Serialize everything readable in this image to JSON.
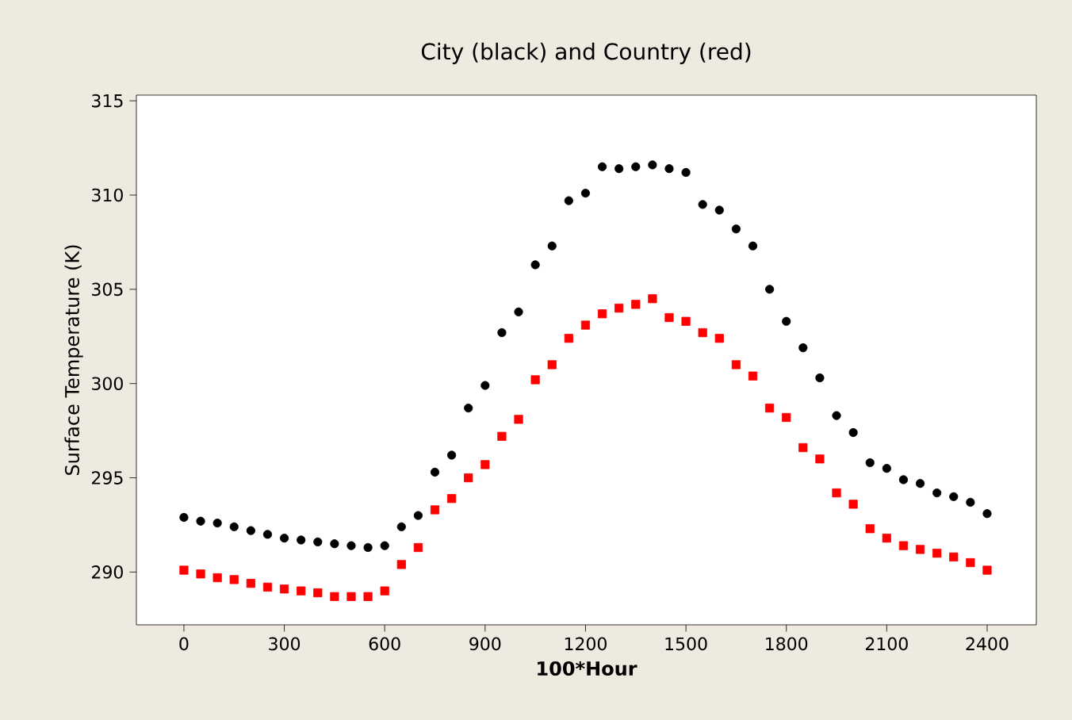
{
  "chart_data": {
    "type": "scatter",
    "title": "City (black) and Country (red)",
    "xlabel": "100*Hour",
    "ylabel": "Surface Temperature (K)",
    "x": [
      0,
      50,
      100,
      150,
      200,
      250,
      300,
      350,
      400,
      450,
      500,
      550,
      600,
      650,
      700,
      750,
      800,
      850,
      900,
      950,
      1000,
      1050,
      1100,
      1150,
      1200,
      1250,
      1300,
      1350,
      1400,
      1450,
      1500,
      1550,
      1600,
      1650,
      1700,
      1750,
      1800,
      1850,
      1900,
      1950,
      2000,
      2050,
      2100,
      2150,
      2200,
      2250,
      2300,
      2350,
      2400
    ],
    "series": [
      {
        "color": "#000000",
        "marker": "circle",
        "values": [
          292.9,
          292.7,
          292.6,
          292.4,
          292.2,
          292.0,
          291.8,
          291.7,
          291.6,
          291.5,
          291.4,
          291.3,
          291.4,
          292.4,
          293.0,
          295.3,
          296.2,
          298.7,
          299.9,
          302.7,
          303.8,
          306.3,
          307.3,
          309.7,
          310.1,
          311.5,
          311.4,
          311.5,
          311.6,
          311.4,
          311.2,
          309.5,
          309.2,
          308.2,
          307.3,
          305.0,
          303.3,
          301.9,
          300.3,
          298.3,
          297.4,
          295.8,
          295.5,
          294.9,
          294.7,
          294.2,
          294.0,
          293.7,
          293.1
        ]
      },
      {
        "color": "#ff0000",
        "marker": "square",
        "values": [
          290.1,
          289.9,
          289.7,
          289.6,
          289.4,
          289.2,
          289.1,
          289.0,
          288.9,
          288.7,
          288.7,
          288.7,
          289.0,
          290.4,
          291.3,
          293.3,
          293.9,
          295.0,
          295.7,
          297.2,
          298.1,
          300.2,
          301.0,
          302.4,
          303.1,
          303.7,
          304.0,
          304.2,
          304.5,
          303.5,
          303.3,
          302.7,
          302.4,
          301.0,
          300.4,
          298.7,
          298.2,
          296.6,
          296.0,
          294.2,
          293.6,
          292.3,
          291.8,
          291.4,
          291.2,
          291.0,
          290.8,
          290.5,
          290.1
        ]
      }
    ],
    "xlim": [
      -142,
      2547
    ],
    "ylim": [
      287.2,
      315.3
    ],
    "xticks": [
      0,
      300,
      600,
      900,
      1200,
      1500,
      1800,
      2100,
      2400
    ],
    "yticks": [
      290,
      295,
      300,
      305,
      310,
      315
    ],
    "grid": false
  }
}
